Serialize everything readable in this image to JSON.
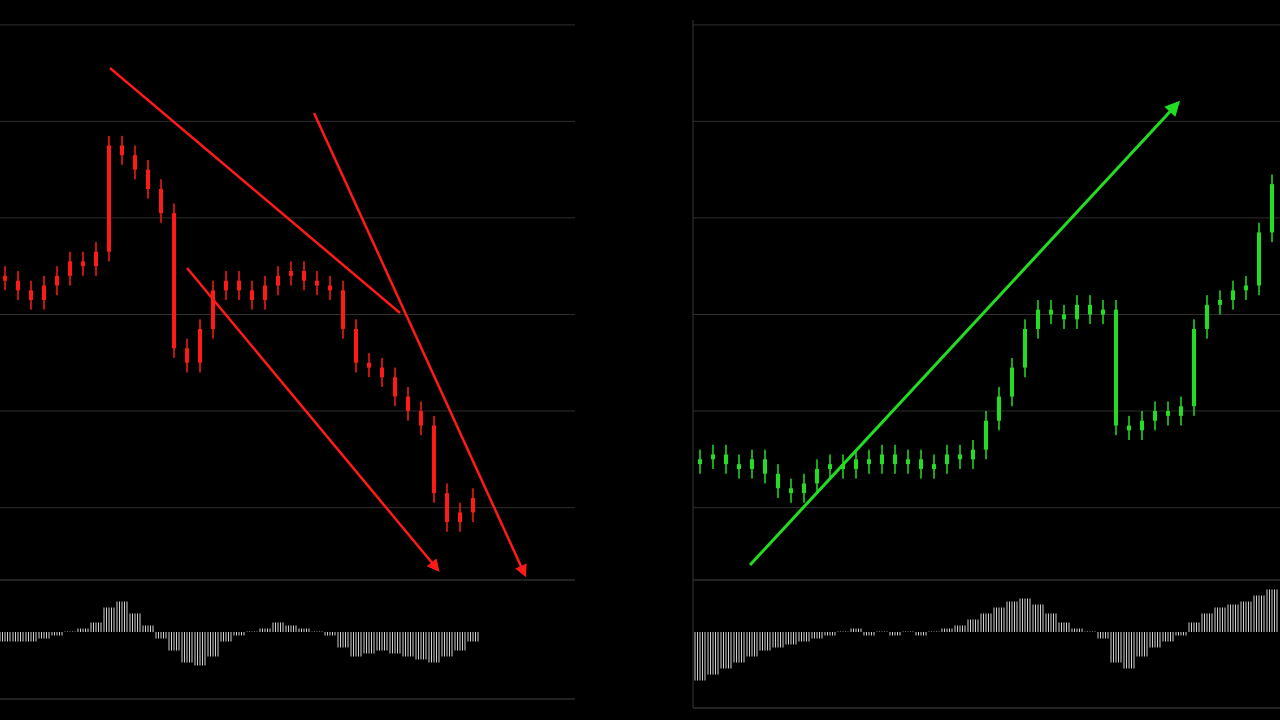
{
  "chart_data": [
    {
      "type": "candlestick",
      "color": "#ff1a1a",
      "grid": true,
      "ylim": [
        0,
        116
      ],
      "yticks": [
        15,
        35,
        55,
        75,
        95,
        115
      ],
      "open": [
        63,
        62,
        60,
        58,
        61,
        63,
        66,
        65,
        68,
        90,
        88,
        85,
        81,
        76,
        48,
        45,
        52,
        60,
        62,
        60,
        58,
        61,
        63,
        64,
        62,
        61,
        60,
        52,
        45,
        44,
        42,
        38,
        35,
        32,
        18,
        12,
        14
      ],
      "high": [
        65,
        64,
        62,
        63,
        65,
        68,
        68,
        70,
        92,
        92,
        90,
        87,
        83,
        78,
        50,
        54,
        62,
        64,
        64,
        62,
        63,
        65,
        66,
        66,
        64,
        63,
        62,
        54,
        47,
        46,
        44,
        40,
        37,
        34,
        20,
        16,
        19
      ],
      "low": [
        60,
        58,
        56,
        56,
        59,
        61,
        63,
        63,
        66,
        86,
        83,
        79,
        74,
        46,
        43,
        43,
        50,
        58,
        58,
        56,
        56,
        59,
        61,
        60,
        59,
        58,
        50,
        43,
        42,
        40,
        36,
        33,
        30,
        16,
        10,
        10,
        12
      ],
      "close": [
        62,
        60,
        58,
        61,
        63,
        66,
        65,
        68,
        90,
        88,
        85,
        81,
        76,
        48,
        45,
        52,
        60,
        62,
        60,
        58,
        61,
        63,
        64,
        62,
        61,
        60,
        52,
        45,
        44,
        42,
        38,
        35,
        32,
        18,
        12,
        14,
        17
      ],
      "indicator": {
        "type": "bar",
        "color": "#cfcfcf",
        "ylim": [
          -20,
          20
        ],
        "values": [
          -3,
          -3,
          -3,
          -2,
          -1,
          0,
          1,
          3,
          8,
          10,
          6,
          2,
          -2,
          -6,
          -10,
          -11,
          -8,
          -3,
          -1,
          0,
          1,
          3,
          2,
          1,
          0,
          -1,
          -5,
          -8,
          -7,
          -6,
          -7,
          -8,
          -9,
          -10,
          -8,
          -6,
          -3
        ]
      }
    },
    {
      "type": "candlestick",
      "color": "#22dd22",
      "grid": true,
      "ylim": [
        0,
        116
      ],
      "yticks": [
        15,
        35,
        55,
        75,
        95,
        115
      ],
      "open": [
        24,
        25,
        26,
        24,
        23,
        25,
        22,
        19,
        18,
        20,
        23,
        24,
        23,
        25,
        24,
        26,
        24,
        25,
        23,
        24,
        26,
        25,
        27,
        33,
        38,
        44,
        52,
        56,
        55,
        54,
        57,
        55,
        56,
        32,
        31,
        33,
        35,
        34,
        36,
        52,
        57,
        58,
        60,
        61,
        72
      ],
      "high": [
        27,
        28,
        28,
        26,
        27,
        27,
        24,
        21,
        22,
        25,
        26,
        26,
        27,
        27,
        28,
        28,
        27,
        27,
        26,
        28,
        28,
        29,
        35,
        40,
        46,
        54,
        58,
        58,
        57,
        59,
        59,
        58,
        58,
        34,
        35,
        37,
        37,
        38,
        54,
        59,
        60,
        62,
        63,
        74,
        84
      ],
      "low": [
        22,
        23,
        22,
        21,
        21,
        20,
        17,
        16,
        16,
        18,
        21,
        21,
        21,
        22,
        22,
        22,
        22,
        21,
        21,
        22,
        23,
        23,
        25,
        31,
        36,
        42,
        50,
        53,
        52,
        52,
        53,
        53,
        30,
        29,
        29,
        31,
        32,
        32,
        34,
        50,
        55,
        56,
        58,
        59,
        70
      ],
      "close": [
        25,
        26,
        24,
        23,
        25,
        22,
        19,
        18,
        20,
        23,
        24,
        23,
        25,
        24,
        26,
        24,
        25,
        23,
        24,
        26,
        25,
        27,
        33,
        38,
        44,
        52,
        56,
        55,
        54,
        57,
        55,
        56,
        32,
        31,
        33,
        35,
        34,
        36,
        52,
        57,
        58,
        60,
        61,
        72,
        82
      ],
      "indicator": {
        "type": "bar",
        "color": "#cfcfcf",
        "ylim": [
          -20,
          20
        ],
        "values": [
          -16,
          -14,
          -12,
          -10,
          -8,
          -6,
          -5,
          -4,
          -3,
          -2,
          -1,
          0,
          1,
          -1,
          0,
          -1,
          0,
          -1,
          0,
          1,
          2,
          4,
          6,
          8,
          10,
          11,
          9,
          6,
          3,
          1,
          0,
          -2,
          -10,
          -12,
          -8,
          -5,
          -3,
          -1,
          3,
          6,
          8,
          9,
          10,
          12,
          14
        ]
      }
    }
  ]
}
